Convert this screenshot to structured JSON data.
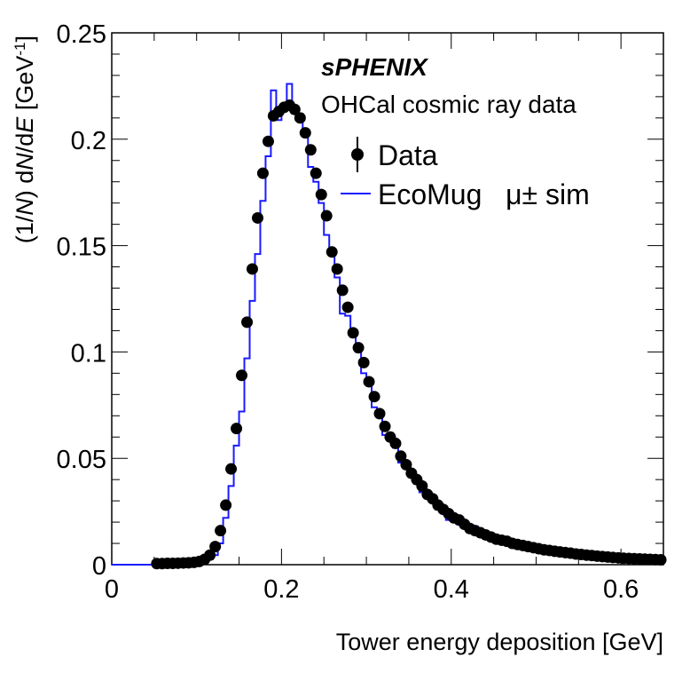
{
  "chart_data": {
    "type": "scatter",
    "title": "",
    "experiment_label": "sPHENIX",
    "subtitle": "OHCal cosmic ray data",
    "xlabel": "Tower energy deposition [GeV]",
    "ylabel_parts": {
      "pre": "(1/",
      "N": "N",
      "mid": ") d",
      "N2": "N",
      "slash": "/d",
      "E": "E",
      "unit": " [GeV",
      "sup": "-1",
      "close": "]"
    },
    "xlim": [
      0,
      0.65
    ],
    "ylim": [
      0,
      0.25
    ],
    "x_ticks": [
      0,
      0.2,
      0.4,
      0.6
    ],
    "x_tick_labels": [
      "0",
      "0.2",
      "0.4",
      "0.6"
    ],
    "y_ticks": [
      0,
      0.05,
      0.1,
      0.15,
      0.2,
      0.25
    ],
    "y_tick_labels": [
      "0",
      "0.05",
      "0.1",
      "0.15",
      "0.2",
      "0.25"
    ],
    "grid": false,
    "legend": {
      "placement": "top-right",
      "entries": [
        {
          "label": "Data",
          "marker": "filled-circle-with-errorbar",
          "color": "#000000"
        },
        {
          "label": "EcoMug   μ± sim",
          "marker": "line",
          "color": "#1a1aff"
        }
      ]
    },
    "series": [
      {
        "name": "Data",
        "style": "points",
        "color": "#000000",
        "x": [
          0.0531,
          0.0594,
          0.0656,
          0.0719,
          0.0781,
          0.0844,
          0.0906,
          0.0969,
          0.1031,
          0.1094,
          0.1156,
          0.1219,
          0.1281,
          0.1344,
          0.1406,
          0.1469,
          0.1531,
          0.1594,
          0.1656,
          0.1719,
          0.1781,
          0.1844,
          0.1906,
          0.1969,
          0.2031,
          0.2094,
          0.2156,
          0.2219,
          0.2281,
          0.2344,
          0.2406,
          0.2469,
          0.2531,
          0.2594,
          0.2656,
          0.2719,
          0.2781,
          0.2844,
          0.2906,
          0.2969,
          0.3031,
          0.3094,
          0.3156,
          0.3219,
          0.3281,
          0.3344,
          0.3406,
          0.3469,
          0.3531,
          0.3594,
          0.3656,
          0.3719,
          0.3781,
          0.3844,
          0.3906,
          0.3969,
          0.4031,
          0.4094,
          0.4156,
          0.4219,
          0.4281,
          0.4344,
          0.4406,
          0.4469,
          0.4531,
          0.4594,
          0.4656,
          0.4719,
          0.4781,
          0.4844,
          0.4906,
          0.4969,
          0.5031,
          0.5094,
          0.5156,
          0.5219,
          0.5281,
          0.5344,
          0.5406,
          0.5469,
          0.5531,
          0.5594,
          0.5656,
          0.5719,
          0.5781,
          0.5844,
          0.5906,
          0.5969,
          0.6031,
          0.6094,
          0.6156,
          0.6219,
          0.6281,
          0.6344,
          0.6406,
          0.6469
        ],
        "y": [
          0.0005,
          0.0005,
          0.0006,
          0.0006,
          0.0007,
          0.0008,
          0.0009,
          0.0011,
          0.0015,
          0.0025,
          0.0045,
          0.0085,
          0.016,
          0.028,
          0.045,
          0.064,
          0.089,
          0.114,
          0.139,
          0.163,
          0.184,
          0.199,
          0.211,
          0.213,
          0.215,
          0.216,
          0.214,
          0.21,
          0.203,
          0.195,
          0.184,
          0.174,
          0.164,
          0.147,
          0.139,
          0.129,
          0.121,
          0.109,
          0.102,
          0.095,
          0.086,
          0.079,
          0.071,
          0.065,
          0.06,
          0.057,
          0.051,
          0.047,
          0.043,
          0.04,
          0.037,
          0.033,
          0.031,
          0.028,
          0.026,
          0.024,
          0.022,
          0.021,
          0.019,
          0.017,
          0.016,
          0.015,
          0.014,
          0.013,
          0.012,
          0.0115,
          0.011,
          0.01,
          0.0095,
          0.009,
          0.0085,
          0.008,
          0.0075,
          0.007,
          0.0067,
          0.0063,
          0.006,
          0.0057,
          0.0054,
          0.005,
          0.0048,
          0.0045,
          0.0043,
          0.004,
          0.0038,
          0.0036,
          0.0034,
          0.0032,
          0.003,
          0.0029,
          0.0028,
          0.0027,
          0.0026,
          0.0025,
          0.0024,
          0.0023
        ]
      },
      {
        "name": "EcoMug μ± sim",
        "style": "step",
        "color": "#1a1aff",
        "bin_edges_start": 0.05,
        "bin_width": 0.00625,
        "pre_range_value": 0.0,
        "y": [
          0.0004,
          0.0004,
          0.0005,
          0.0005,
          0.0006,
          0.0007,
          0.0008,
          0.0015,
          0.001,
          0.0018,
          0.0025,
          0.0045,
          0.01,
          0.022,
          0.037,
          0.056,
          0.072,
          0.097,
          0.124,
          0.146,
          0.171,
          0.192,
          0.223,
          0.209,
          0.214,
          0.226,
          0.212,
          0.212,
          0.202,
          0.187,
          0.18,
          0.17,
          0.155,
          0.148,
          0.135,
          0.118,
          0.117,
          0.107,
          0.1,
          0.09,
          0.085,
          0.074,
          0.07,
          0.061,
          0.062,
          0.055,
          0.048,
          0.046,
          0.042,
          0.038,
          0.034,
          0.033,
          0.03,
          0.026,
          0.026,
          0.021,
          0.023,
          0.019,
          0.018,
          0.015,
          0.018,
          0.014,
          0.015,
          0.012,
          0.013,
          0.01,
          0.011,
          0.009,
          0.011,
          0.008,
          0.007,
          0.0075,
          0.006,
          0.0075,
          0.0055,
          0.006,
          0.005,
          0.0045,
          0.006,
          0.004,
          0.0045,
          0.0038,
          0.004,
          0.0035,
          0.0042,
          0.003,
          0.003,
          0.0028,
          0.003,
          0.0025,
          0.0028,
          0.002,
          0.0024,
          0.0018,
          0.002,
          0.002
        ]
      }
    ]
  }
}
